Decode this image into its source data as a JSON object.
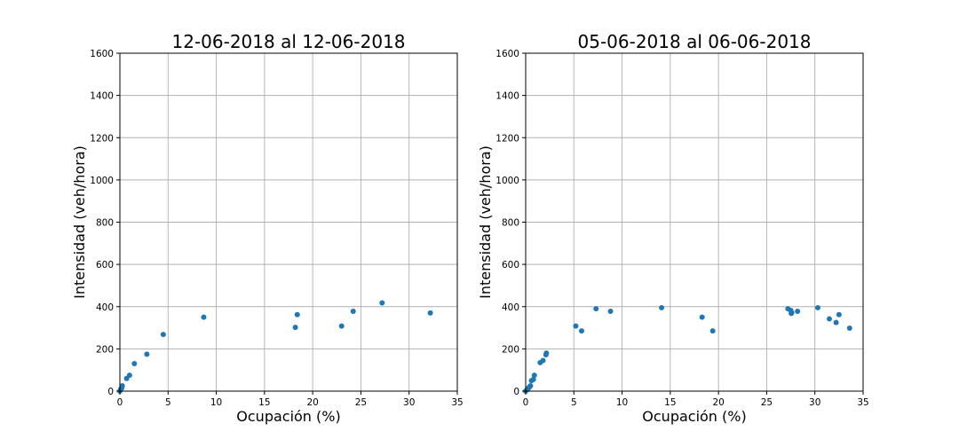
{
  "chart_data": [
    {
      "type": "scatter",
      "title": "12-06-2018 al 12-06-2018",
      "xlabel": "Ocupación (%)",
      "ylabel": "Intensidad (veh/hora)",
      "xlim": [
        0,
        35
      ],
      "ylim": [
        0,
        1600
      ],
      "xticks": [
        0,
        5,
        10,
        15,
        20,
        25,
        30,
        35
      ],
      "yticks": [
        0,
        200,
        400,
        600,
        800,
        1000,
        1200,
        1400,
        1600
      ],
      "grid": true,
      "color": "#1f77b4",
      "points": [
        {
          "x": 0.0,
          "y": 0
        },
        {
          "x": 0.05,
          "y": 5
        },
        {
          "x": 0.1,
          "y": 10
        },
        {
          "x": 0.2,
          "y": 15
        },
        {
          "x": 0.25,
          "y": 25
        },
        {
          "x": 0.7,
          "y": 60
        },
        {
          "x": 1.0,
          "y": 75
        },
        {
          "x": 1.5,
          "y": 130
        },
        {
          "x": 2.8,
          "y": 175
        },
        {
          "x": 4.5,
          "y": 268
        },
        {
          "x": 8.7,
          "y": 350
        },
        {
          "x": 18.2,
          "y": 302
        },
        {
          "x": 18.4,
          "y": 362
        },
        {
          "x": 23.0,
          "y": 308
        },
        {
          "x": 24.2,
          "y": 378
        },
        {
          "x": 27.2,
          "y": 418
        },
        {
          "x": 32.2,
          "y": 370
        }
      ]
    },
    {
      "type": "scatter",
      "title": "05-06-2018 al 06-06-2018",
      "xlabel": "Ocupación (%)",
      "ylabel": "Intensidad (veh/hora)",
      "xlim": [
        0,
        35
      ],
      "ylim": [
        0,
        1600
      ],
      "xticks": [
        0,
        5,
        10,
        15,
        20,
        25,
        30,
        35
      ],
      "yticks": [
        0,
        200,
        400,
        600,
        800,
        1000,
        1200,
        1400,
        1600
      ],
      "grid": true,
      "color": "#1f77b4",
      "points": [
        {
          "x": 0.0,
          "y": 0
        },
        {
          "x": 0.1,
          "y": 5
        },
        {
          "x": 0.2,
          "y": 10
        },
        {
          "x": 0.3,
          "y": 15
        },
        {
          "x": 0.4,
          "y": 20
        },
        {
          "x": 0.5,
          "y": 25
        },
        {
          "x": 0.6,
          "y": 50
        },
        {
          "x": 0.8,
          "y": 55
        },
        {
          "x": 0.9,
          "y": 75
        },
        {
          "x": 1.5,
          "y": 135
        },
        {
          "x": 1.8,
          "y": 145
        },
        {
          "x": 2.1,
          "y": 172
        },
        {
          "x": 2.15,
          "y": 180
        },
        {
          "x": 5.2,
          "y": 308
        },
        {
          "x": 5.8,
          "y": 285
        },
        {
          "x": 7.3,
          "y": 390
        },
        {
          "x": 8.8,
          "y": 378
        },
        {
          "x": 14.1,
          "y": 395
        },
        {
          "x": 18.3,
          "y": 350
        },
        {
          "x": 19.4,
          "y": 285
        },
        {
          "x": 27.2,
          "y": 390
        },
        {
          "x": 27.5,
          "y": 382
        },
        {
          "x": 27.55,
          "y": 368
        },
        {
          "x": 27.6,
          "y": 372
        },
        {
          "x": 28.2,
          "y": 378
        },
        {
          "x": 30.3,
          "y": 395
        },
        {
          "x": 31.5,
          "y": 342
        },
        {
          "x": 32.2,
          "y": 325
        },
        {
          "x": 32.5,
          "y": 362
        },
        {
          "x": 33.6,
          "y": 298
        }
      ]
    }
  ]
}
